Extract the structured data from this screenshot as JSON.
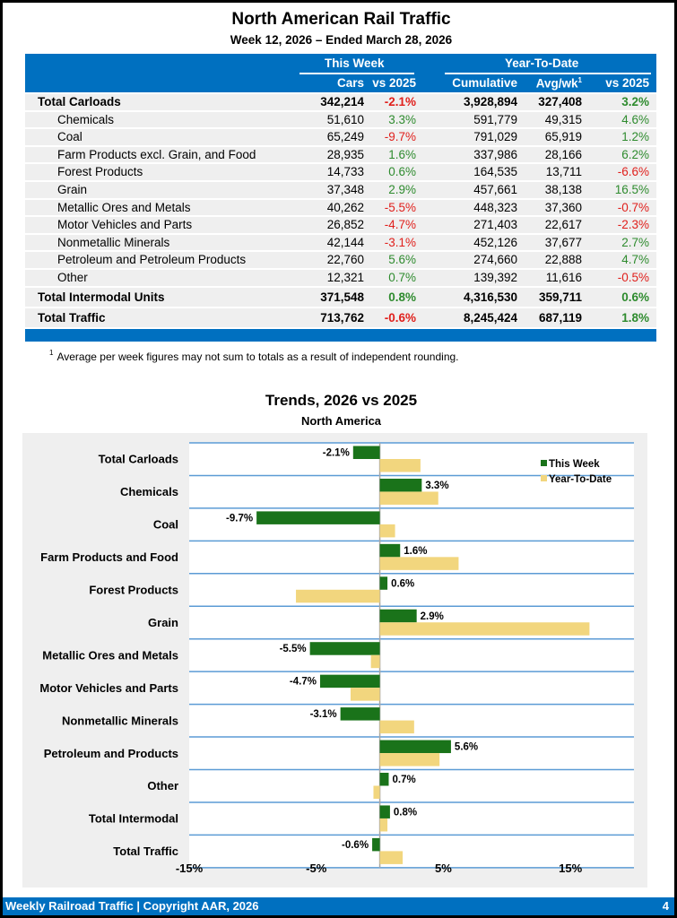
{
  "header": {
    "title": "North American Rail Traffic",
    "subtitle": "Week 12, 2026 – Ended March 28, 2026"
  },
  "table": {
    "group_this_week": "This Week",
    "group_ytd": "Year-To-Date",
    "col_cars": "Cars",
    "col_vs": "vs 2025",
    "col_cumulative": "Cumulative",
    "col_avg": "Avg/wk",
    "col_avg_sup": "1",
    "col_ytd_vs": "vs 2025",
    "rows": [
      {
        "name": "Total Carloads",
        "cars": "342,214",
        "vs": "-2.1%",
        "cum": "3,928,894",
        "avg": "327,408",
        "ytd": "3.2%",
        "type": "total"
      },
      {
        "name": "Chemicals",
        "cars": "51,610",
        "vs": "3.3%",
        "cum": "591,779",
        "avg": "49,315",
        "ytd": "4.6%",
        "type": "sub"
      },
      {
        "name": "Coal",
        "cars": "65,249",
        "vs": "-9.7%",
        "cum": "791,029",
        "avg": "65,919",
        "ytd": "1.2%",
        "type": "sub"
      },
      {
        "name": "Farm Products excl. Grain, and Food",
        "cars": "28,935",
        "vs": "1.6%",
        "cum": "337,986",
        "avg": "28,166",
        "ytd": "6.2%",
        "type": "sub"
      },
      {
        "name": "Forest Products",
        "cars": "14,733",
        "vs": "0.6%",
        "cum": "164,535",
        "avg": "13,711",
        "ytd": "-6.6%",
        "type": "sub"
      },
      {
        "name": "Grain",
        "cars": "37,348",
        "vs": "2.9%",
        "cum": "457,661",
        "avg": "38,138",
        "ytd": "16.5%",
        "type": "sub"
      },
      {
        "name": "Metallic Ores and Metals",
        "cars": "40,262",
        "vs": "-5.5%",
        "cum": "448,323",
        "avg": "37,360",
        "ytd": "-0.7%",
        "type": "sub"
      },
      {
        "name": "Motor Vehicles and Parts",
        "cars": "26,852",
        "vs": "-4.7%",
        "cum": "271,403",
        "avg": "22,617",
        "ytd": "-2.3%",
        "type": "sub"
      },
      {
        "name": "Nonmetallic Minerals",
        "cars": "42,144",
        "vs": "-3.1%",
        "cum": "452,126",
        "avg": "37,677",
        "ytd": "2.7%",
        "type": "sub"
      },
      {
        "name": "Petroleum and Petroleum Products",
        "cars": "22,760",
        "vs": "5.6%",
        "cum": "274,660",
        "avg": "22,888",
        "ytd": "4.7%",
        "type": "sub"
      },
      {
        "name": "Other",
        "cars": "12,321",
        "vs": "0.7%",
        "cum": "139,392",
        "avg": "11,616",
        "ytd": "-0.5%",
        "type": "sub"
      },
      {
        "name": "Total Intermodal Units",
        "cars": "371,548",
        "vs": "0.8%",
        "cum": "4,316,530",
        "avg": "359,711",
        "ytd": "0.6%",
        "type": "big"
      },
      {
        "name": "Total Traffic",
        "cars": "713,762",
        "vs": "-0.6%",
        "cum": "8,245,424",
        "avg": "687,119",
        "ytd": "1.8%",
        "type": "big"
      }
    ]
  },
  "footnote": {
    "marker": "1",
    "text": "Average per week figures may not sum to totals as a result of independent rounding."
  },
  "colors": {
    "brand_blue": "#0070c0",
    "positive": "#2e8b2e",
    "negative": "#e0201c",
    "this_week_bar": "#1a731a",
    "ytd_bar": "#f2d67e",
    "gridline": "#5b9bd5"
  },
  "chart_data": {
    "type": "bar",
    "orientation": "horizontal",
    "title": "Trends, 2026 vs 2025",
    "subtitle": "North America",
    "xlabel": "",
    "ylabel": "",
    "xlim": [
      -15,
      20
    ],
    "xticks": [
      -15,
      -5,
      5,
      15
    ],
    "xtick_labels": [
      "-15%",
      "-5%",
      "5%",
      "15%"
    ],
    "legend": "top-right",
    "categories": [
      "Total Carloads",
      "Chemicals",
      "Coal",
      "Farm Products and Food",
      "Forest Products",
      "Grain",
      "Metallic Ores and Metals",
      "Motor Vehicles and Parts",
      "Nonmetallic Minerals",
      "Petroleum and Products",
      "Other",
      "Total Intermodal",
      "Total Traffic"
    ],
    "series": [
      {
        "name": "This Week",
        "values": [
          -2.1,
          3.3,
          -9.7,
          1.6,
          0.6,
          2.9,
          -5.5,
          -4.7,
          -3.1,
          5.6,
          0.7,
          0.8,
          -0.6
        ],
        "labels": [
          "-2.1%",
          "3.3%",
          "-9.7%",
          "1.6%",
          "0.6%",
          "2.9%",
          "-5.5%",
          "-4.7%",
          "-3.1%",
          "5.6%",
          "0.7%",
          "0.8%",
          "-0.6%"
        ]
      },
      {
        "name": "Year-To-Date",
        "values": [
          3.2,
          4.6,
          1.2,
          6.2,
          -6.6,
          16.5,
          -0.7,
          -2.3,
          2.7,
          4.7,
          -0.5,
          0.6,
          1.8
        ]
      }
    ]
  },
  "footer": {
    "text": "Weekly Railroad Traffic | Copyright AAR, 2026",
    "page": "4"
  }
}
